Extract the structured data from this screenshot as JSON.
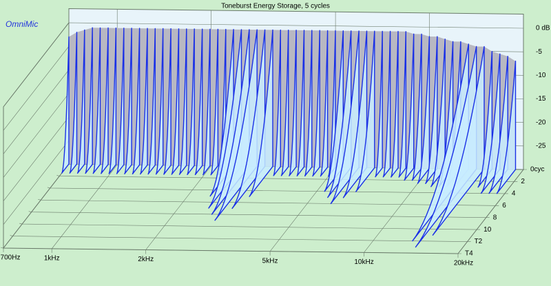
{
  "chart_data": {
    "type": "waterfall",
    "title": "Toneburst Energy Storage, 5 cycles",
    "watermark": "OmniMic",
    "xscale": "log",
    "xlim": [
      700,
      20000
    ],
    "xticks": [
      {
        "value": 700,
        "label": "700Hz"
      },
      {
        "value": 1000,
        "label": "1kHz"
      },
      {
        "value": 2000,
        "label": "2kHz"
      },
      {
        "value": 5000,
        "label": "5kHz"
      },
      {
        "value": 10000,
        "label": "10kHz"
      },
      {
        "value": 20000,
        "label": "20kHz"
      }
    ],
    "ylim": [
      -30,
      0
    ],
    "yticks": [
      {
        "value": 0,
        "label": "0 dB"
      },
      -5,
      -10,
      -15,
      -20,
      -25
    ],
    "zlim": [
      0,
      14
    ],
    "zticks": [
      {
        "value": 0,
        "label": "0cyc"
      },
      2,
      4,
      6,
      8,
      10,
      {
        "value": 12,
        "label": "T2"
      },
      {
        "value": 14,
        "label": "T4"
      }
    ],
    "x": [
      700,
      742,
      786,
      833,
      882,
      935,
      991,
      1050,
      1112,
      1179,
      1249,
      1323,
      1402,
      1485,
      1574,
      1667,
      1766,
      1872,
      1983,
      2101,
      2226,
      2358,
      2498,
      2647,
      2804,
      2971,
      3148,
      3335,
      3533,
      3743,
      3966,
      4202,
      4452,
      4717,
      4997,
      5294,
      5609,
      5943,
      6296,
      6671,
      7067,
      7488,
      7933,
      8405,
      8905,
      9434,
      9995,
      10590,
      11219,
      11886,
      12593,
      13342,
      14135,
      14976,
      15866,
      16810,
      17809,
      18868
    ],
    "levels": [
      -3,
      -2,
      -1.5,
      -1,
      -1,
      -1,
      -1,
      -1,
      -1,
      -1,
      -1,
      -1,
      -1,
      -1,
      -1,
      -1,
      -1,
      -1,
      -1,
      -1,
      -1,
      -1,
      -1,
      -1,
      -1,
      -1,
      -1,
      -1,
      -1,
      -1,
      -1,
      -1,
      -1,
      -1,
      -1,
      -1,
      -1,
      -1,
      -1,
      -1,
      -1,
      -1,
      -1,
      -1,
      -1.5,
      -1.5,
      -2,
      -2,
      -2.5,
      -3,
      -3,
      -3.5,
      -4,
      -4,
      -5,
      -5.5,
      -6,
      -7
    ],
    "decay": [
      1.5,
      1.5,
      1.5,
      1.5,
      1.5,
      1.5,
      1.5,
      1.5,
      1.5,
      1.5,
      1.5,
      1.5,
      1.5,
      1.5,
      1.5,
      1.5,
      1.5,
      1.5,
      1.5,
      1.5,
      1.5,
      5,
      7,
      8,
      9,
      7,
      5,
      1.5,
      1.5,
      1.5,
      1.5,
      1.5,
      1.5,
      1.5,
      1.5,
      4,
      5,
      6,
      5,
      4,
      1.5,
      1.5,
      1.5,
      1.5,
      2,
      2,
      2.5,
      2.5,
      3,
      3,
      3,
      12,
      13,
      11,
      3,
      4,
      4,
      4
    ],
    "background": "#cdeecd",
    "wall_color": "#e8f4fa",
    "curtain_color": "#b8b8c2",
    "slice_fill": "#c8ecff",
    "line_color": "#1a30e6",
    "grid_color": "#6a7a6a"
  }
}
